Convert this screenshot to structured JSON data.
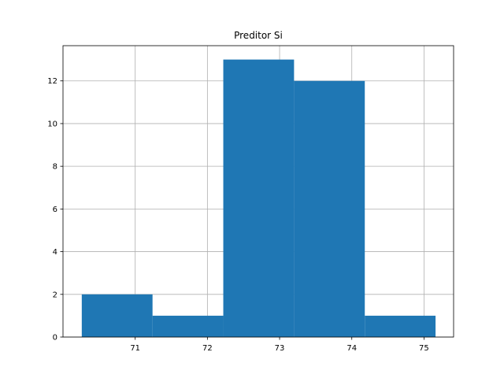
{
  "chart_data": {
    "type": "bar",
    "title": "Preditor Si",
    "xlabel": "",
    "ylabel": "",
    "bins": [
      {
        "x0": 70.26,
        "x1": 71.24,
        "count": 2
      },
      {
        "x0": 71.24,
        "x1": 72.22,
        "count": 1
      },
      {
        "x0": 72.22,
        "x1": 73.2,
        "count": 13
      },
      {
        "x0": 73.2,
        "x1": 74.18,
        "count": 12
      },
      {
        "x0": 74.18,
        "x1": 75.16,
        "count": 1
      }
    ],
    "xlim": [
      70.0,
      75.41
    ],
    "ylim": [
      0,
      13.65
    ],
    "xticks": [
      71,
      72,
      73,
      74,
      75
    ],
    "yticks": [
      0,
      2,
      4,
      6,
      8,
      10,
      12
    ],
    "grid": true,
    "bar_color": "#1f77b4",
    "grid_color": "#b0b0b0"
  }
}
